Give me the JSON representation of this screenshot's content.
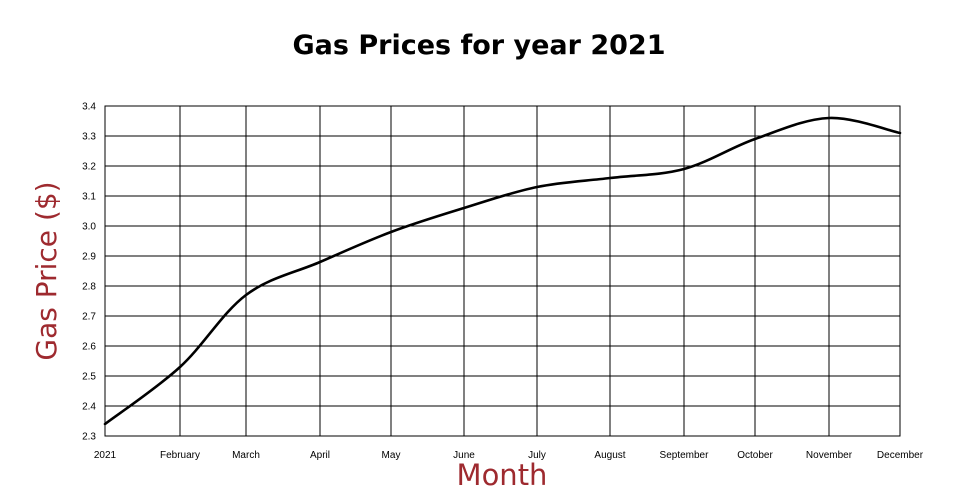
{
  "chart_data": {
    "type": "line",
    "title": "Gas Prices for year 2021",
    "xlabel": "Month",
    "ylabel": "Gas Price ($)",
    "categories": [
      "2021",
      "February",
      "March",
      "April",
      "May",
      "June",
      "July",
      "August",
      "September",
      "October",
      "November",
      "December"
    ],
    "values": [
      2.34,
      2.53,
      2.77,
      2.88,
      2.98,
      3.06,
      3.13,
      3.16,
      3.19,
      3.29,
      3.36,
      3.31
    ],
    "ylim": [
      2.3,
      3.4
    ],
    "yticks": [
      "2.3",
      "2.4",
      "2.5",
      "2.6",
      "2.7",
      "2.8",
      "2.9",
      "3.0",
      "3.1",
      "3.2",
      "3.3",
      "3.4"
    ],
    "grid": true,
    "line_color": "#000000",
    "axis_title_color": "#9e2a2f"
  }
}
